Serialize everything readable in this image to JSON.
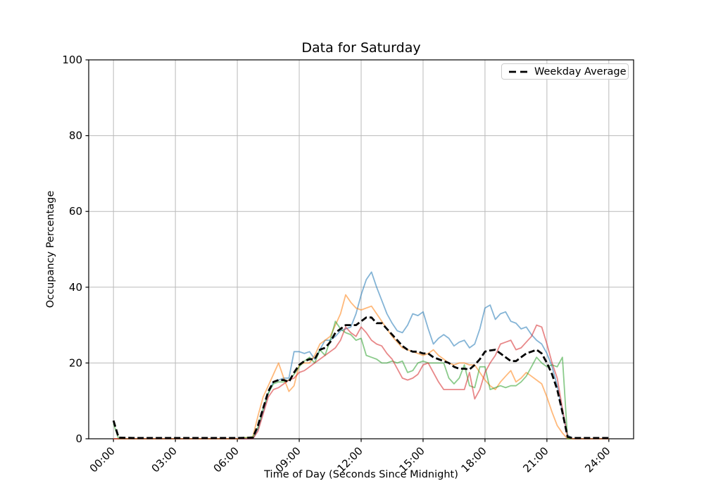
{
  "figure": {
    "background": "#ffffff"
  },
  "chart_data": {
    "type": "line",
    "title": "Data for Saturday",
    "xlabel": "Time of Day (Seconds Since Midnight)",
    "ylabel": "Occupancy Percentage",
    "xlim": [
      -1.2,
      25.2
    ],
    "ylim": [
      0,
      100
    ],
    "grid": true,
    "grid_color": "#bababa",
    "xticks": {
      "positions": [
        0,
        3,
        6,
        9,
        12,
        15,
        18,
        21,
        24
      ],
      "labels": [
        "00:00",
        "03:00",
        "06:00",
        "09:00",
        "12:00",
        "15:00",
        "18:00",
        "21:00",
        "24:00"
      ],
      "rotation": 45
    },
    "yticks": {
      "positions": [
        0,
        20,
        40,
        60,
        80,
        100
      ],
      "labels": [
        "0",
        "20",
        "40",
        "60",
        "80",
        "100"
      ]
    },
    "legend": {
      "position": "upper right",
      "entries": [
        {
          "label": "Weekday Average",
          "color": "#000000",
          "dash": true
        }
      ]
    },
    "x_hours": [
      0,
      0.25,
      1,
      2,
      3,
      4,
      5,
      6,
      6.75,
      7,
      7.25,
      7.5,
      7.75,
      8,
      8.25,
      8.5,
      8.75,
      9,
      9.25,
      9.5,
      9.75,
      10,
      10.25,
      10.5,
      10.75,
      11,
      11.25,
      11.5,
      11.75,
      12,
      12.25,
      12.5,
      12.75,
      13,
      13.25,
      13.5,
      13.75,
      14,
      14.25,
      14.5,
      14.75,
      15,
      15.25,
      15.5,
      15.75,
      16,
      16.25,
      16.5,
      16.75,
      17,
      17.25,
      17.5,
      17.75,
      18,
      18.25,
      18.5,
      18.75,
      19,
      19.25,
      19.5,
      19.75,
      20,
      20.25,
      20.5,
      20.75,
      21,
      21.25,
      21.5,
      21.75,
      22,
      22.25,
      23,
      24
    ],
    "series": [
      {
        "name": "saturday-series-1",
        "color": "#1f77b4",
        "opacity": 0.55,
        "width": 1.8,
        "dash": null,
        "values": [
          0,
          0,
          0,
          0,
          0,
          0,
          0,
          0,
          0,
          2.5,
          7,
          12,
          15,
          15.5,
          16,
          16,
          23,
          23,
          22.5,
          23,
          21,
          23.5,
          26,
          26,
          27,
          28.5,
          29,
          29.5,
          33,
          38,
          42,
          44,
          40,
          36.5,
          33,
          30.5,
          28.5,
          28,
          30,
          33,
          32.5,
          33.5,
          29,
          25,
          26.5,
          27.5,
          26.5,
          24.5,
          25.5,
          26,
          24,
          25,
          29,
          34.5,
          35.3,
          31.5,
          33,
          33.5,
          31,
          30.5,
          29,
          29.5,
          27.5,
          26,
          25,
          22.5,
          19,
          14,
          7,
          1,
          0,
          0,
          0
        ]
      },
      {
        "name": "saturday-series-2",
        "color": "#ff7f0e",
        "opacity": 0.55,
        "width": 1.8,
        "dash": null,
        "values": [
          0,
          0,
          0,
          0,
          0,
          0,
          0,
          0,
          0.5,
          6,
          11,
          14,
          17,
          20,
          16,
          12.5,
          14,
          19.5,
          20,
          20,
          22,
          25,
          26,
          27,
          30,
          33,
          38,
          36,
          34.5,
          34,
          34.5,
          35,
          33,
          31,
          29,
          27,
          25.5,
          24,
          23.5,
          23,
          22.5,
          22,
          22.5,
          23.5,
          22,
          21,
          20,
          19.5,
          20,
          20,
          19.5,
          19.5,
          17.5,
          15.5,
          14,
          13,
          15,
          16.5,
          18,
          15,
          16,
          17.5,
          16.5,
          15.5,
          14.5,
          11,
          7,
          3.5,
          1.5,
          0,
          0,
          0,
          0
        ]
      },
      {
        "name": "saturday-series-3",
        "color": "#2ca02c",
        "opacity": 0.55,
        "width": 1.8,
        "dash": null,
        "values": [
          4,
          0,
          0,
          0,
          0,
          0,
          0,
          0,
          0.5,
          3,
          8,
          12,
          14.5,
          15,
          15,
          15.5,
          17,
          19,
          20.5,
          21.5,
          20,
          23.5,
          22,
          26,
          31,
          29,
          28,
          27.5,
          26,
          26.5,
          22,
          21.5,
          21,
          20,
          20,
          20.5,
          20,
          20.5,
          17.5,
          18,
          20,
          20.5,
          20,
          20,
          20,
          20,
          16,
          14.5,
          16,
          19.5,
          14,
          13.5,
          19,
          19,
          13,
          13.5,
          14,
          13.5,
          14,
          14,
          15,
          16.5,
          19,
          21.5,
          20,
          19,
          19.5,
          19,
          21.5,
          0,
          0,
          0,
          0
        ]
      },
      {
        "name": "saturday-series-4",
        "color": "#d62728",
        "opacity": 0.55,
        "width": 1.8,
        "dash": null,
        "values": [
          0,
          0,
          0,
          0,
          0,
          0,
          0,
          0,
          0,
          2,
          6.5,
          11,
          13,
          13.5,
          14.5,
          15.5,
          16,
          17.5,
          18,
          19,
          20,
          21,
          22,
          23,
          24,
          26,
          29.5,
          28,
          27,
          29.5,
          28,
          26,
          25,
          24.5,
          22.5,
          21,
          18.5,
          16,
          15.5,
          16,
          17,
          19.5,
          20,
          17.5,
          15,
          13,
          13,
          13,
          13,
          13,
          17.5,
          10.5,
          13,
          17.5,
          20,
          22,
          25,
          25.5,
          26,
          23.5,
          24,
          25.5,
          27,
          30,
          29.5,
          25,
          20,
          16,
          8,
          0.5,
          0,
          0,
          0
        ]
      },
      {
        "name": "weekday-average",
        "label": "Weekday Average",
        "color": "#000000",
        "opacity": 1,
        "width": 2.8,
        "dash": "9 4",
        "values": [
          4.8,
          0.3,
          0.2,
          0.2,
          0.2,
          0.2,
          0.2,
          0.2,
          0.3,
          3.5,
          8,
          12.5,
          15,
          15.5,
          15.5,
          15,
          17.5,
          19.5,
          20.5,
          21,
          21,
          23.5,
          24,
          25.5,
          28,
          29,
          30,
          30,
          30,
          31,
          32,
          32,
          30.5,
          30.5,
          29,
          27.5,
          26,
          24.5,
          23.5,
          23,
          23,
          22.5,
          22.5,
          21.5,
          21,
          20.5,
          20,
          19,
          18.5,
          18.5,
          18.3,
          19.5,
          21,
          23,
          23.3,
          23.5,
          22.5,
          21.5,
          20.5,
          20.5,
          21.5,
          22.5,
          23,
          23.5,
          22.5,
          20,
          17,
          13,
          7,
          0.5,
          0.2,
          0.2,
          0.2
        ]
      }
    ]
  }
}
